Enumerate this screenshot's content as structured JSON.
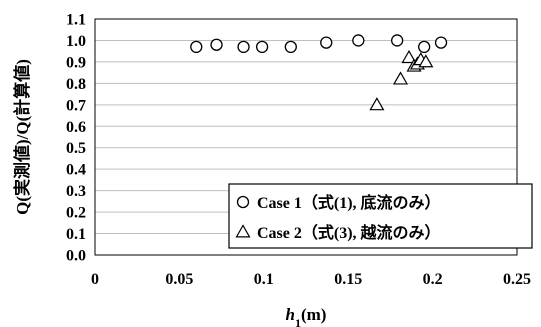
{
  "chart_data": {
    "type": "scatter",
    "xlabel_main": "h",
    "xlabel_sub": "1",
    "xlabel_unit": "(m)",
    "ylabel": "Q(実測値)/Q(計算値)",
    "xlim": [
      0,
      0.25
    ],
    "ylim": [
      0,
      1.1
    ],
    "x_ticks": [
      "0",
      "0.05",
      "0.1",
      "0.15",
      "0.2",
      "0.25"
    ],
    "y_ticks": [
      "0.0",
      "0.1",
      "0.2",
      "0.3",
      "0.4",
      "0.5",
      "0.6",
      "0.7",
      "0.8",
      "0.9",
      "1.0",
      "1.1"
    ],
    "grid": "horizontal",
    "legend_position": "bottom-right",
    "series": [
      {
        "name": "Case 1（式(1), 底流のみ）",
        "marker": "circle",
        "points": [
          [
            0.06,
            0.97
          ],
          [
            0.072,
            0.98
          ],
          [
            0.088,
            0.97
          ],
          [
            0.099,
            0.97
          ],
          [
            0.116,
            0.97
          ],
          [
            0.137,
            0.99
          ],
          [
            0.156,
            1.0
          ],
          [
            0.179,
            1.0
          ],
          [
            0.195,
            0.97
          ],
          [
            0.205,
            0.99
          ]
        ]
      },
      {
        "name": "Case 2（式(3), 越流のみ）",
        "marker": "triangle",
        "points": [
          [
            0.167,
            0.7
          ],
          [
            0.181,
            0.82
          ],
          [
            0.186,
            0.92
          ],
          [
            0.189,
            0.88
          ],
          [
            0.191,
            0.89
          ],
          [
            0.193,
            0.91
          ],
          [
            0.196,
            0.9
          ]
        ]
      }
    ]
  }
}
